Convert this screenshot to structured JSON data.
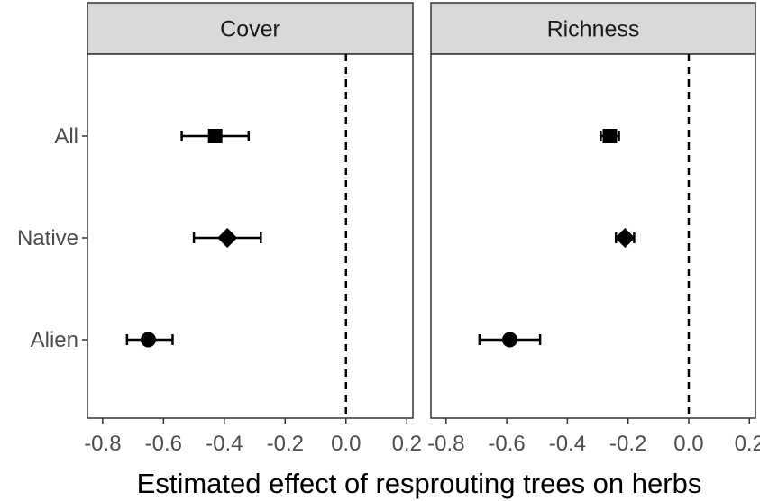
{
  "chart_data": {
    "type": "scatter",
    "subtype": "faceted point-range (coefficient plot)",
    "xlabel": "Estimated effect of resprouting trees on herbs",
    "xlim": [
      -0.85,
      0.22
    ],
    "xticks": [
      -0.8,
      -0.6,
      -0.4,
      -0.2,
      0.0,
      0.2
    ],
    "xtick_labels": [
      "-0.8",
      "-0.6",
      "-0.4",
      "-0.2",
      "0.0",
      "0.2"
    ],
    "reference_line": {
      "x": 0.0,
      "style": "dashed"
    },
    "categories": [
      "All",
      "Native",
      "Alien"
    ],
    "grid": false,
    "legend": "none",
    "colors": {
      "points": "#000000",
      "strip_fill": "#d9d9d9",
      "panel_border": "#333333",
      "tick_text": "#4d4d4d"
    },
    "panels": [
      {
        "title": "Cover",
        "points": [
          {
            "group": "All",
            "estimate": -0.43,
            "lower": -0.54,
            "upper": -0.32,
            "shape": "square"
          },
          {
            "group": "Native",
            "estimate": -0.39,
            "lower": -0.5,
            "upper": -0.28,
            "shape": "diamond"
          },
          {
            "group": "Alien",
            "estimate": -0.65,
            "lower": -0.72,
            "upper": -0.57,
            "shape": "circle"
          }
        ]
      },
      {
        "title": "Richness",
        "points": [
          {
            "group": "All",
            "estimate": -0.26,
            "lower": -0.29,
            "upper": -0.23,
            "shape": "square"
          },
          {
            "group": "Native",
            "estimate": -0.21,
            "lower": -0.24,
            "upper": -0.18,
            "shape": "diamond"
          },
          {
            "group": "Alien",
            "estimate": -0.59,
            "lower": -0.69,
            "upper": -0.49,
            "shape": "circle"
          }
        ]
      }
    ]
  }
}
